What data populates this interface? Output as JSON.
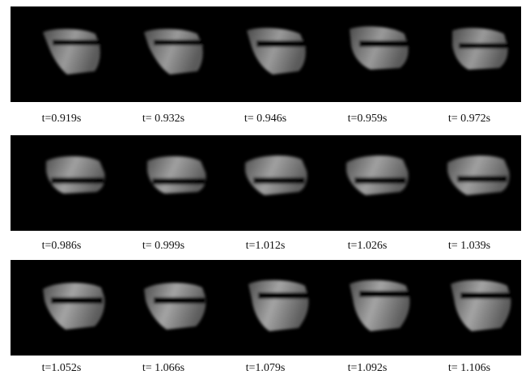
{
  "rows": [
    {
      "frames": [
        {
          "caption": "t=0.919s"
        },
        {
          "caption": "t= 0.932s"
        },
        {
          "caption": "t= 0.946s"
        },
        {
          "caption": "t=0.959s"
        },
        {
          "caption": "t= 0.972s"
        }
      ]
    },
    {
      "frames": [
        {
          "caption": "t=0.986s"
        },
        {
          "caption": "t= 0.999s"
        },
        {
          "caption": "t=1.012s"
        },
        {
          "caption": "t=1.026s"
        },
        {
          "caption": "t= 1.039s"
        }
      ]
    },
    {
      "frames": [
        {
          "caption": "t=1.052s"
        },
        {
          "caption": "t= 1.066s"
        },
        {
          "caption": "t=1.079s"
        },
        {
          "caption": "t=1.092s"
        },
        {
          "caption": "t= 1.106s"
        }
      ]
    }
  ]
}
